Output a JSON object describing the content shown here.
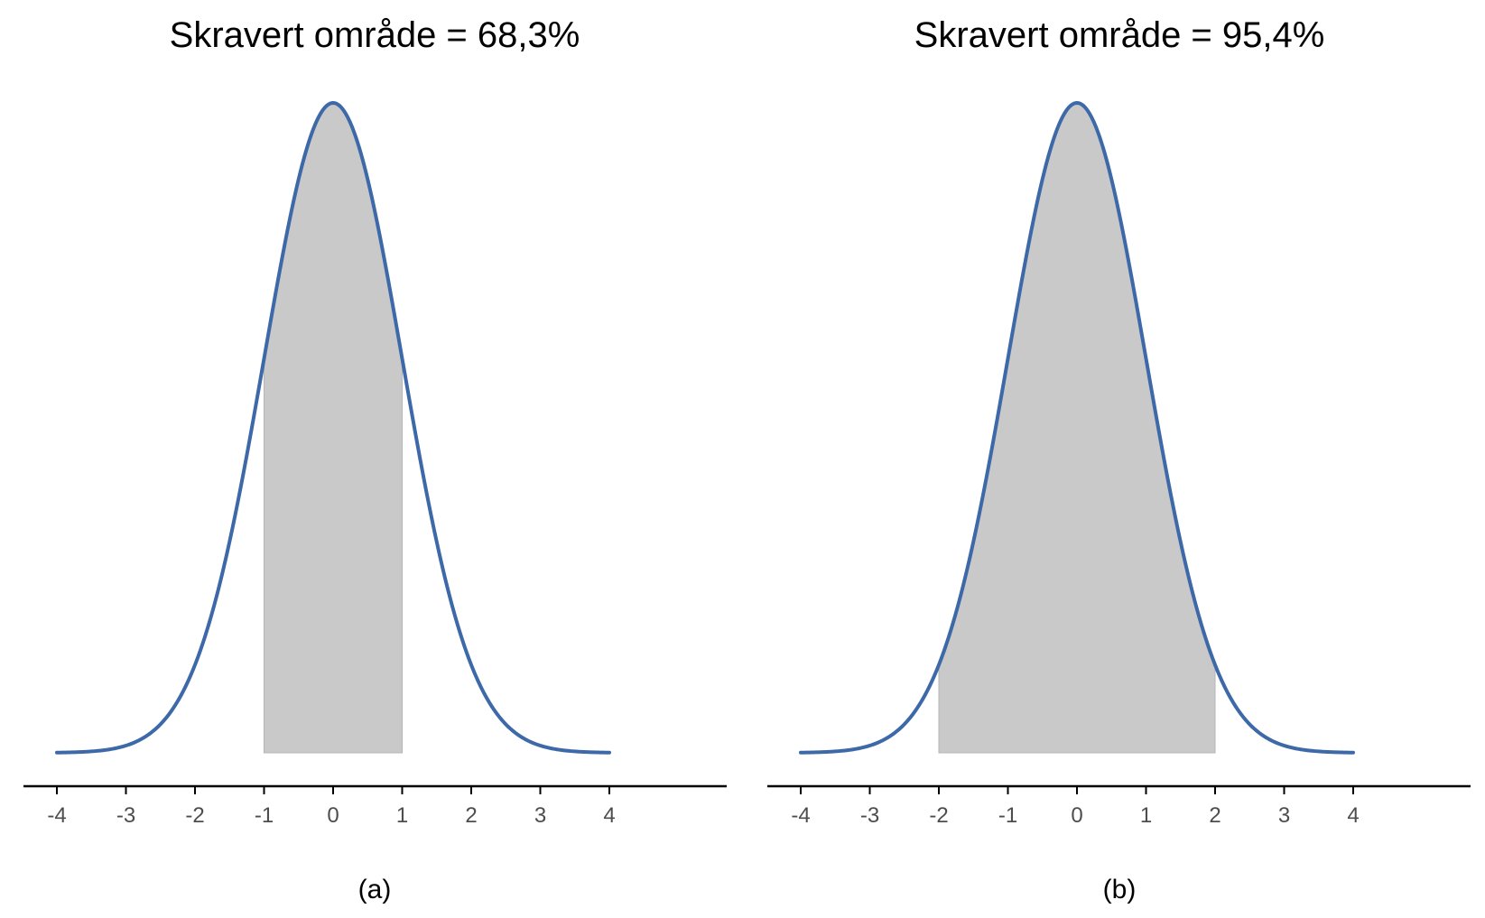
{
  "chart_data": [
    {
      "type": "area",
      "title": "Skravert område = 68,3%",
      "caption": "(a)",
      "xlabel": "",
      "ylabel": "",
      "xlim": [
        -4,
        4
      ],
      "x_ticks": [
        "-4",
        "-3",
        "-2",
        "-1",
        "0",
        "1",
        "2",
        "3",
        "4"
      ],
      "curve": "standard normal density",
      "shaded_interval": [
        -1,
        1
      ],
      "shaded_area_percent": 68.3,
      "grid": false
    },
    {
      "type": "area",
      "title": "Skravert område = 95,4%",
      "caption": "(b)",
      "xlabel": "",
      "ylabel": "",
      "xlim": [
        -4,
        4
      ],
      "x_ticks": [
        "-4",
        "-3",
        "-2",
        "-1",
        "0",
        "1",
        "2",
        "3",
        "4"
      ],
      "curve": "standard normal density",
      "shaded_interval": [
        -2,
        2
      ],
      "shaded_area_percent": 95.4,
      "grid": false
    }
  ],
  "colors": {
    "curve": "#3d69a8",
    "shade": "#c9c9c9",
    "shade_edge": "#b5b5b5",
    "axis": "#000000",
    "tick_text": "#4d4d4d"
  }
}
